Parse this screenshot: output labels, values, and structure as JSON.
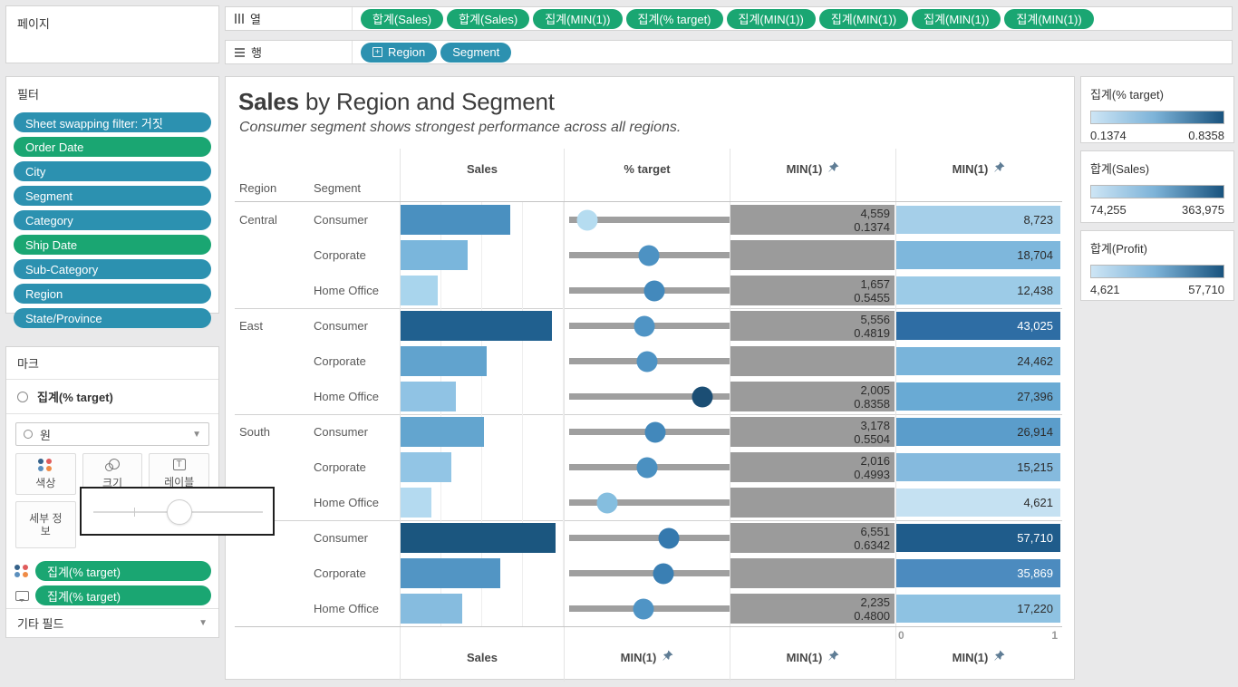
{
  "accent": {
    "pill_green": "#1aa672",
    "pill_blue": "#2c91b0",
    "gray_bar": "#9b9b9b"
  },
  "pages": {
    "title": "페이지"
  },
  "shelves": {
    "columns_label": "열",
    "rows_label": "행",
    "columns_pills": [
      "합계(Sales)",
      "합계(Sales)",
      "집계(MIN(1))",
      "집계(% target)",
      "집계(MIN(1))",
      "집계(MIN(1))",
      "집계(MIN(1))",
      "집계(MIN(1))"
    ],
    "rows_pills": [
      {
        "label": "Region",
        "expand": true
      },
      {
        "label": "Segment",
        "expand": false
      }
    ]
  },
  "filters": {
    "title": "필터",
    "pills": [
      {
        "label": "Sheet swapping filter: 거짓",
        "color": "blue"
      },
      {
        "label": "Order Date",
        "color": "green"
      },
      {
        "label": "City",
        "color": "blue"
      },
      {
        "label": "Segment",
        "color": "blue"
      },
      {
        "label": "Category",
        "color": "blue"
      },
      {
        "label": "Ship Date",
        "color": "green"
      },
      {
        "label": "Sub-Category",
        "color": "blue"
      },
      {
        "label": "Region",
        "color": "blue"
      },
      {
        "label": "State/Province",
        "color": "blue"
      }
    ]
  },
  "marks": {
    "title": "마크",
    "active_mark": "집계(% target)",
    "mark_type": "원",
    "buttons": {
      "color": "색상",
      "size": "크기",
      "label": "레이블",
      "detail": "세부 정보"
    },
    "encoding_pills": [
      {
        "icon": "color-icon",
        "label": "집계(% target)"
      },
      {
        "icon": "tooltip-icon",
        "label": "집계(% target)"
      }
    ],
    "other_fields": "기타 필드"
  },
  "legends": [
    {
      "title": "집계(% target)",
      "min": "0.1374",
      "max": "0.8358"
    },
    {
      "title": "합계(Sales)",
      "min": "74,255",
      "max": "363,975"
    },
    {
      "title": "합계(Profit)",
      "min": "4,621",
      "max": "57,710"
    }
  ],
  "chart_data": {
    "type": "table",
    "title_bold": "Sales",
    "title_rest": " by Region and Segment",
    "subtitle": "Consumer segment shows strongest performance across all regions.",
    "row_dim_headers": [
      "Region",
      "Segment"
    ],
    "col_headers": [
      "Sales",
      "% target",
      "MIN(1)",
      "MIN(1)"
    ],
    "col_headers_pinned": [
      false,
      false,
      true,
      true
    ],
    "bottom_axis_titles": [
      "Sales",
      "MIN(1)",
      "MIN(1)",
      "MIN(1)"
    ],
    "bottom_axis_pinned": [
      false,
      true,
      true,
      true
    ],
    "last_axis_ticks": [
      "0",
      "1"
    ],
    "sales_axis_max_approx": 385000,
    "rows": [
      {
        "region": "Central",
        "segment": "Consumer",
        "sales_approx": 252000,
        "sales_frac": 0.67,
        "sales_color": "#4a90c0",
        "target": 0.1374,
        "target_color": "#b5dcf0",
        "gray_labels": [
          "4,559",
          "0.1374"
        ],
        "profit_label": "8,723",
        "profit_color": "#a5cfe9",
        "profit_text_light": false,
        "group_start": false
      },
      {
        "region": "",
        "segment": "Corporate",
        "sales_approx": 158000,
        "sales_frac": 0.41,
        "sales_color": "#7ab6dc",
        "target": 0.51,
        "target_color": "#4d92c3",
        "gray_labels": [],
        "profit_label": "18,704",
        "profit_color": "#7eb7dc",
        "profit_text_light": false,
        "group_start": false
      },
      {
        "region": "",
        "segment": "Home Office",
        "sales_approx": 91000,
        "sales_frac": 0.23,
        "sales_color": "#a9d5ed",
        "target": 0.5455,
        "target_color": "#4389bc",
        "gray_labels": [
          "1,657",
          "0.5455"
        ],
        "profit_label": "12,438",
        "profit_color": "#9ccbe7",
        "profit_text_light": false,
        "group_start": false
      },
      {
        "region": "East",
        "segment": "Consumer",
        "sales_approx": 351000,
        "sales_frac": 0.93,
        "sales_color": "#20608f",
        "target": 0.4819,
        "target_color": "#4f94c5",
        "gray_labels": [
          "5,556",
          "0.4819"
        ],
        "profit_label": "43,025",
        "profit_color": "#2e6da4",
        "profit_text_light": true,
        "group_start": true
      },
      {
        "region": "",
        "segment": "Corporate",
        "sales_approx": 200000,
        "sales_frac": 0.53,
        "sales_color": "#61a3ce",
        "target": 0.5,
        "target_color": "#4e93c4",
        "gray_labels": [],
        "profit_label": "24,462",
        "profit_color": "#79b4da",
        "profit_text_light": false,
        "group_start": false
      },
      {
        "region": "",
        "segment": "Home Office",
        "sales_approx": 127000,
        "sales_frac": 0.34,
        "sales_color": "#90c3e4",
        "target": 0.8358,
        "target_color": "#1b4e74",
        "gray_labels": [
          "2,005",
          "0.8358"
        ],
        "profit_label": "27,396",
        "profit_color": "#69aad4",
        "profit_text_light": false,
        "group_start": false
      },
      {
        "region": "South",
        "segment": "Consumer",
        "sales_approx": 196000,
        "sales_frac": 0.51,
        "sales_color": "#63a5cf",
        "target": 0.5504,
        "target_color": "#4288bb",
        "gray_labels": [
          "3,178",
          "0.5504"
        ],
        "profit_label": "26,914",
        "profit_color": "#5b9dcb",
        "profit_text_light": false,
        "group_start": true
      },
      {
        "region": "",
        "segment": "Corporate",
        "sales_approx": 122000,
        "sales_frac": 0.31,
        "sales_color": "#92c5e5",
        "target": 0.4993,
        "target_color": "#4a90c1",
        "gray_labels": [
          "2,016",
          "0.4993"
        ],
        "profit_label": "15,215",
        "profit_color": "#85bade",
        "profit_text_light": false,
        "group_start": false
      },
      {
        "region": "",
        "segment": "Home Office",
        "sales_approx": 74255,
        "sales_frac": 0.19,
        "sales_color": "#b4daf0",
        "target": 0.26,
        "target_color": "#85bedf",
        "gray_labels": [],
        "profit_label": "4,621",
        "profit_color": "#c5e1f2",
        "profit_text_light": false,
        "group_start": false
      },
      {
        "region": "",
        "segment": "Consumer",
        "sales_approx": 363975,
        "sales_frac": 0.95,
        "sales_color": "#1b567f",
        "target": 0.6342,
        "target_color": "#3579ae",
        "gray_labels": [
          "6,551",
          "0.6342"
        ],
        "profit_label": "57,710",
        "profit_color": "#1f5c8b",
        "profit_text_light": true,
        "group_start": true
      },
      {
        "region": "",
        "segment": "Corporate",
        "sales_approx": 233000,
        "sales_frac": 0.61,
        "sales_color": "#5295c4",
        "target": 0.6,
        "target_color": "#3a7fb3",
        "gray_labels": [],
        "profit_label": "35,869",
        "profit_color": "#4c8bbf",
        "profit_text_light": true,
        "group_start": false
      },
      {
        "region": "",
        "segment": "Home Office",
        "sales_approx": 144000,
        "sales_frac": 0.38,
        "sales_color": "#86bcdf",
        "target": 0.48,
        "target_color": "#4f94c5",
        "gray_labels": [
          "2,235",
          "0.4800"
        ],
        "profit_label": "17,220",
        "profit_color": "#8ec2e2",
        "profit_text_light": false,
        "group_start": false
      }
    ]
  }
}
